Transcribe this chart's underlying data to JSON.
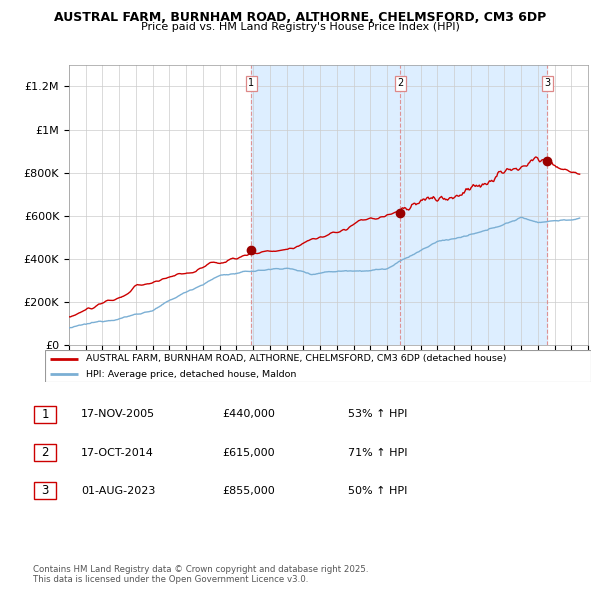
{
  "title_line1": "AUSTRAL FARM, BURNHAM ROAD, ALTHORNE, CHELMSFORD, CM3 6DP",
  "title_line2": "Price paid vs. HM Land Registry's House Price Index (HPI)",
  "ylim": [
    0,
    1300000
  ],
  "yticks": [
    0,
    200000,
    400000,
    600000,
    800000,
    1000000,
    1200000
  ],
  "ytick_labels": [
    "£0",
    "£200K",
    "£400K",
    "£600K",
    "£800K",
    "£1M",
    "£1.2M"
  ],
  "xlim_start": 1995.0,
  "xlim_end": 2026.0,
  "hpi_color": "#7bafd4",
  "property_color": "#cc0000",
  "shade_color": "#ddeeff",
  "sale_points": [
    {
      "date_year": 2005.88,
      "price": 440000,
      "label": "1"
    },
    {
      "date_year": 2014.79,
      "price": 615000,
      "label": "2"
    },
    {
      "date_year": 2023.58,
      "price": 855000,
      "label": "3"
    }
  ],
  "legend_property_label": "AUSTRAL FARM, BURNHAM ROAD, ALTHORNE, CHELMSFORD, CM3 6DP (detached house)",
  "legend_hpi_label": "HPI: Average price, detached house, Maldon",
  "table_rows": [
    {
      "num": "1",
      "date": "17-NOV-2005",
      "price": "£440,000",
      "change": "53% ↑ HPI"
    },
    {
      "num": "2",
      "date": "17-OCT-2014",
      "price": "£615,000",
      "change": "71% ↑ HPI"
    },
    {
      "num": "3",
      "date": "01-AUG-2023",
      "price": "£855,000",
      "change": "50% ↑ HPI"
    }
  ],
  "footer_text": "Contains HM Land Registry data © Crown copyright and database right 2025.\nThis data is licensed under the Open Government Licence v3.0.",
  "background_color": "#ffffff",
  "grid_color": "#cccccc",
  "dashed_vline_color": "#dd8888"
}
